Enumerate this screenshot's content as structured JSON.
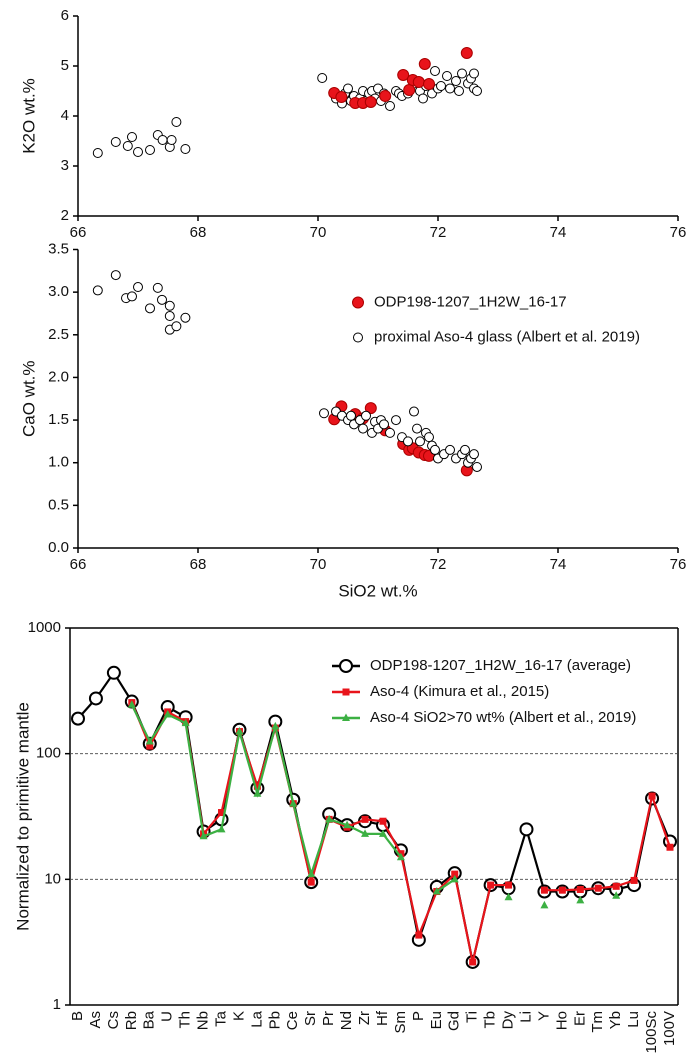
{
  "chart_data": [
    {
      "type": "scatter",
      "ylabel": "K2O wt.%",
      "xlim": [
        66,
        76
      ],
      "xticks": [
        66,
        68,
        70,
        72,
        74,
        76
      ],
      "ylim": [
        2,
        6
      ],
      "yticks": [
        2,
        3,
        4,
        5,
        6
      ],
      "series": [
        {
          "color": "#ffffff",
          "x": [
            66.33,
            66.63,
            66.83,
            66.9,
            67.0,
            67.2,
            67.33,
            67.41,
            67.53,
            67.56,
            67.64,
            67.79,
            70.07,
            70.3,
            70.4,
            70.45,
            70.5,
            70.55,
            70.6,
            70.7,
            70.75,
            70.8,
            70.85,
            70.9,
            70.95,
            71.0,
            71.05,
            71.1,
            71.2,
            71.3,
            71.35,
            71.4,
            71.5,
            71.6,
            71.7,
            71.75,
            71.8,
            71.9,
            71.95,
            72.0,
            72.05,
            72.15,
            72.2,
            72.3,
            72.35,
            72.4,
            72.5,
            72.55,
            72.6,
            72.6,
            72.65
          ],
          "y": [
            3.26,
            3.48,
            3.4,
            3.58,
            3.28,
            3.32,
            3.62,
            3.52,
            3.38,
            3.52,
            3.88,
            3.34,
            4.76,
            4.35,
            4.25,
            4.45,
            4.55,
            4.3,
            4.4,
            4.35,
            4.5,
            4.3,
            4.45,
            4.5,
            4.35,
            4.55,
            4.3,
            4.45,
            4.2,
            4.5,
            4.45,
            4.4,
            4.45,
            4.65,
            4.5,
            4.35,
            4.6,
            4.45,
            4.9,
            4.55,
            4.6,
            4.8,
            4.55,
            4.7,
            4.5,
            4.85,
            4.65,
            4.75,
            4.85,
            4.55,
            4.5
          ]
        },
        {
          "color": "#e8141b",
          "x": [
            70.27,
            70.39,
            70.62,
            70.75,
            70.88,
            71.12,
            71.42,
            71.52,
            71.58,
            71.68,
            71.78,
            71.85,
            72.48
          ],
          "y": [
            4.46,
            4.38,
            4.26,
            4.26,
            4.28,
            4.4,
            4.82,
            4.52,
            4.72,
            4.68,
            5.04,
            4.64,
            5.26
          ]
        }
      ]
    },
    {
      "type": "scatter",
      "xlabel": "SiO2 wt.%",
      "ylabel": "CaO wt.%",
      "xlim": [
        66,
        76
      ],
      "xticks": [
        66,
        68,
        70,
        72,
        74,
        76
      ],
      "ylim": [
        0,
        3.5
      ],
      "yticks": [
        {
          "value": 0,
          "label": "0.0"
        },
        0.5,
        {
          "value": 1,
          "label": "1.0"
        },
        1.5,
        {
          "value": 2,
          "label": "2.0"
        },
        2.5,
        {
          "value": 3,
          "label": "3.0"
        },
        3.5
      ],
      "legend": "right",
      "series": [
        {
          "name": "ODP198-1207_1H2W_16-17",
          "color": "#e8141b",
          "x": [
            70.27,
            70.39,
            70.62,
            70.75,
            70.88,
            71.12,
            71.42,
            71.52,
            71.58,
            71.68,
            71.78,
            71.85,
            72.48
          ],
          "y": [
            1.51,
            1.66,
            1.57,
            1.52,
            1.64,
            1.38,
            1.22,
            1.15,
            1.17,
            1.12,
            1.09,
            1.08,
            0.91
          ]
        },
        {
          "name": "proximal Aso-4 glass (Albert et al. 2019)",
          "color": "#ffffff",
          "x": [
            66.33,
            66.63,
            66.8,
            66.9,
            67.0,
            67.2,
            67.33,
            67.4,
            67.53,
            67.53,
            67.53,
            67.64,
            67.79,
            70.1,
            70.3,
            70.4,
            70.5,
            70.55,
            70.6,
            70.7,
            70.75,
            70.8,
            70.9,
            70.95,
            71.0,
            71.05,
            71.1,
            71.2,
            71.3,
            71.4,
            71.5,
            71.6,
            71.65,
            71.7,
            71.8,
            71.85,
            71.9,
            71.95,
            72.0,
            72.1,
            72.2,
            72.3,
            72.4,
            72.45,
            72.5,
            72.55,
            72.6,
            72.65
          ],
          "y": [
            3.02,
            3.2,
            2.93,
            2.95,
            3.06,
            2.81,
            3.05,
            2.91,
            2.84,
            2.72,
            2.56,
            2.6,
            2.7,
            1.58,
            1.6,
            1.55,
            1.5,
            1.55,
            1.45,
            1.5,
            1.4,
            1.55,
            1.35,
            1.48,
            1.4,
            1.5,
            1.45,
            1.35,
            1.5,
            1.3,
            1.25,
            1.6,
            1.4,
            1.25,
            1.35,
            1.3,
            1.2,
            1.15,
            1.05,
            1.1,
            1.15,
            1.05,
            1.1,
            1.15,
            1.0,
            1.05,
            1.1,
            0.95
          ]
        }
      ]
    },
    {
      "type": "line",
      "ylabel": "Normalized to primitive mantle",
      "yscale": "log",
      "ylim": [
        1,
        1000
      ],
      "yticks": [
        1,
        10,
        100,
        1000
      ],
      "grid": true,
      "legend": "upper right",
      "categories": [
        "B",
        "As",
        "Cs",
        "Rb",
        "Ba",
        "U",
        "Th",
        "Nb",
        "Ta",
        "K",
        "La",
        "Pb",
        "Ce",
        "Sr",
        "Pr",
        "Nd",
        "Zr",
        "Hf",
        "Sm",
        "P",
        "Eu",
        "Gd",
        "Ti",
        "Tb",
        "Dy",
        "Li",
        "Y",
        "Ho",
        "Er",
        "Tm",
        "Yb",
        "Lu",
        "100Sc",
        "100V"
      ],
      "series": [
        {
          "name": "ODP198-1207_1H2W_16-17 (average)",
          "color": "#000000",
          "marker": "circle",
          "values": [
            190,
            275,
            440,
            260,
            120,
            235,
            195,
            24,
            30,
            155,
            53,
            180,
            43,
            9.5,
            33,
            27,
            29,
            27,
            17,
            3.3,
            8.7,
            11.2,
            2.2,
            9,
            8.5,
            25,
            8,
            8,
            8,
            8.5,
            8.3,
            9,
            44,
            20
          ]
        },
        {
          "name": "Aso-4 (Kimura et al., 2015)",
          "color": "#e8141b",
          "marker": "square",
          "values": [
            null,
            null,
            null,
            255,
            115,
            215,
            180,
            23,
            34,
            150,
            55,
            160,
            40,
            9.5,
            30,
            26,
            30,
            29,
            16,
            3.6,
            8,
            11,
            2.2,
            9,
            9,
            null,
            8.2,
            8.2,
            8.3,
            8.5,
            8.8,
            9.8,
            46,
            18
          ]
        },
        {
          "name": "Aso-4 SiO2>70 wt% (Albert et al., 2019)",
          "color": "#3cb043",
          "marker": "triangle",
          "values": [
            null,
            null,
            null,
            245,
            125,
            205,
            175,
            22,
            25,
            150,
            48,
            165,
            40,
            11,
            30,
            27,
            23,
            23,
            15,
            null,
            8,
            10,
            null,
            null,
            7.2,
            null,
            6.2,
            null,
            6.8,
            null,
            7.4,
            null,
            null,
            null
          ]
        }
      ]
    }
  ]
}
